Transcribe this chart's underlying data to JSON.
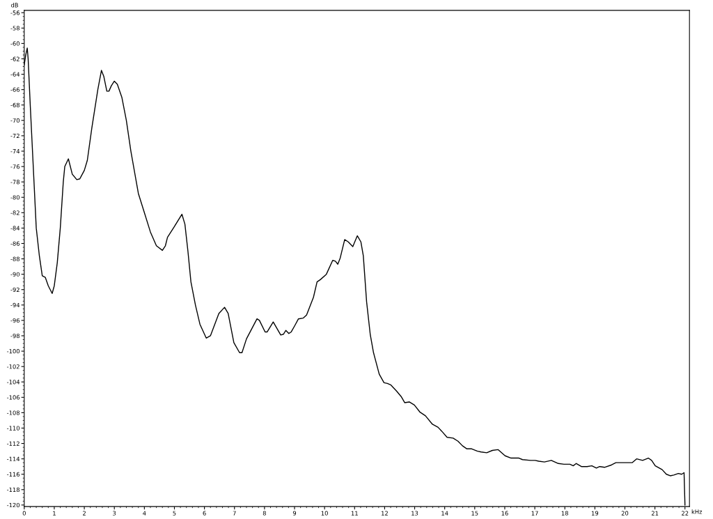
{
  "chart_data": {
    "type": "line",
    "xlabel": "kHz",
    "ylabel": "dB",
    "xlim": [
      0,
      22.15
    ],
    "ylim": [
      -120.2,
      -55.7
    ],
    "xticks": [
      0,
      1,
      2,
      3,
      4,
      5,
      6,
      7,
      8,
      9,
      10,
      11,
      12,
      13,
      14,
      15,
      16,
      17,
      18,
      19,
      20,
      21,
      22
    ],
    "yticks": [
      -56,
      -58,
      -60,
      -62,
      -64,
      -66,
      -68,
      -70,
      -72,
      -74,
      -76,
      -78,
      -80,
      -82,
      -84,
      -86,
      -88,
      -90,
      -92,
      -94,
      -96,
      -98,
      -100,
      -102,
      -104,
      -106,
      -108,
      -110,
      -112,
      -114,
      -116,
      -118,
      -120
    ],
    "grid": false,
    "legend": false,
    "marker": "none",
    "line_style": "solid",
    "series": [
      {
        "color": "#000000",
        "x": [
          0,
          0.05,
          0.1,
          0.13,
          0.2,
          0.3,
          0.4,
          0.5,
          0.6,
          0.7,
          0.8,
          0.93,
          1.0,
          1.1,
          1.2,
          1.3,
          1.35,
          1.47,
          1.6,
          1.75,
          1.85,
          2.0,
          2.1,
          2.25,
          2.45,
          2.57,
          2.65,
          2.75,
          2.82,
          2.9,
          3.0,
          3.1,
          3.25,
          3.4,
          3.55,
          3.8,
          4.0,
          4.2,
          4.4,
          4.6,
          4.7,
          4.77,
          5.0,
          5.25,
          5.35,
          5.45,
          5.55,
          5.7,
          5.85,
          6.06,
          6.2,
          6.48,
          6.67,
          6.79,
          6.98,
          7.17,
          7.25,
          7.4,
          7.75,
          7.83,
          8.02,
          8.09,
          8.29,
          8.54,
          8.63,
          8.71,
          8.81,
          8.89,
          9.02,
          9.13,
          9.29,
          9.4,
          9.63,
          9.75,
          9.86,
          10.06,
          10.27,
          10.36,
          10.44,
          10.52,
          10.67,
          10.79,
          10.94,
          11.09,
          11.21,
          11.29,
          11.4,
          11.52,
          11.63,
          11.82,
          11.98,
          12.09,
          12.21,
          12.4,
          12.55,
          12.67,
          12.82,
          12.99,
          13.17,
          13.36,
          13.59,
          13.78,
          13.9,
          14.08,
          14.28,
          14.44,
          14.59,
          14.74,
          14.9,
          15.09,
          15.21,
          15.4,
          15.59,
          15.78,
          16.01,
          16.21,
          16.47,
          16.59,
          16.86,
          17.01,
          17.13,
          17.32,
          17.55,
          17.78,
          17.97,
          18.17,
          18.28,
          18.38,
          18.55,
          18.74,
          18.9,
          19.05,
          19.16,
          19.32,
          19.55,
          19.7,
          19.93,
          20.24,
          20.39,
          20.59,
          20.78,
          20.89,
          21.01,
          21.24,
          21.38,
          21.51,
          21.63,
          21.78,
          21.89,
          21.97,
          22.0
        ],
        "values": [
          -62.8,
          -61.5,
          -60.6,
          -62,
          -68,
          -76,
          -84,
          -87.5,
          -90.2,
          -90.4,
          -91.5,
          -92.5,
          -91.5,
          -88.5,
          -84,
          -78,
          -76,
          -75,
          -77,
          -77.7,
          -77.6,
          -76.5,
          -75.2,
          -71,
          -66,
          -63.5,
          -64.3,
          -66.2,
          -66.2,
          -65.5,
          -64.9,
          -65.3,
          -67,
          -70,
          -74,
          -79.5,
          -82,
          -84.5,
          -86.3,
          -86.9,
          -86.3,
          -85.2,
          -83.8,
          -82.2,
          -83.5,
          -87,
          -91,
          -94,
          -96.5,
          -98.3,
          -98,
          -95.1,
          -94.3,
          -95.1,
          -98.9,
          -100.2,
          -100.2,
          -98.4,
          -95.8,
          -96,
          -97.5,
          -97.5,
          -96.2,
          -97.9,
          -97.8,
          -97.3,
          -97.7,
          -97.5,
          -96.6,
          -95.8,
          -95.7,
          -95.3,
          -93,
          -91,
          -90.7,
          -90,
          -88.2,
          -88.3,
          -88.7,
          -87.9,
          -85.5,
          -85.8,
          -86.4,
          -85,
          -85.8,
          -87.6,
          -93.6,
          -97.8,
          -100.2,
          -103,
          -104.1,
          -104.2,
          -104.4,
          -105.2,
          -105.9,
          -106.7,
          -106.6,
          -107,
          -107.9,
          -108.4,
          -109.5,
          -109.9,
          -110.4,
          -111.2,
          -111.3,
          -111.7,
          -112.3,
          -112.7,
          -112.7,
          -113,
          -113.1,
          -113.2,
          -112.9,
          -112.8,
          -113.6,
          -113.9,
          -113.9,
          -114.1,
          -114.2,
          -114.2,
          -114.3,
          -114.4,
          -114.2,
          -114.6,
          -114.7,
          -114.7,
          -114.9,
          -114.6,
          -115,
          -115,
          -114.9,
          -115.2,
          -115,
          -115.1,
          -114.8,
          -114.5,
          -114.5,
          -114.5,
          -114,
          -114.2,
          -113.9,
          -114.2,
          -114.9,
          -115.4,
          -116,
          -116.2,
          -116.1,
          -115.9,
          -116,
          -115.8,
          -120
        ]
      }
    ]
  }
}
